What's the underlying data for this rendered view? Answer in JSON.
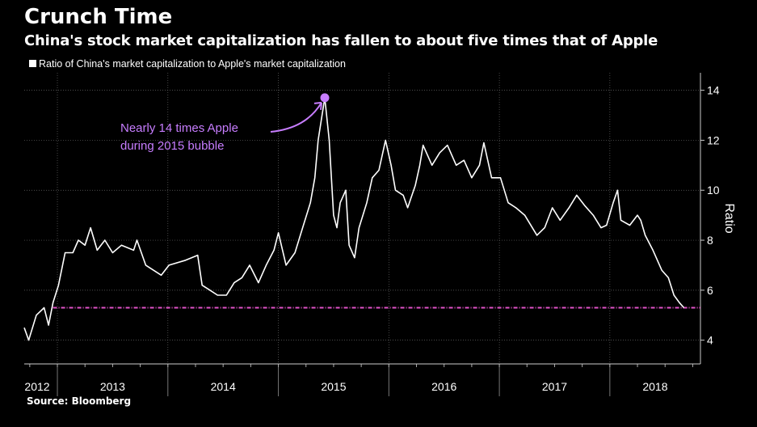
{
  "header": {
    "title": "Crunch Time",
    "subtitle": "China's stock market capitalization has fallen to about five times that of Apple"
  },
  "source": "Source: Bloomberg",
  "chart_data": {
    "type": "line",
    "title": "Crunch Time",
    "subtitle": "China's stock market capitalization has fallen to about five times that of Apple",
    "ylabel": "Ratio",
    "xlabel": "",
    "xlim": [
      2012.7,
      2018.82
    ],
    "ylim": [
      3.05,
      14.7
    ],
    "yticks": [
      4,
      6,
      8,
      10,
      12,
      14
    ],
    "xtick_labels": [
      "2012",
      "2013",
      "2014",
      "2015",
      "2016",
      "2017",
      "2018"
    ],
    "grid": true,
    "legend": {
      "position": "top-left",
      "entries": [
        "Ratio of China's market capitalization to Apple's market capitalization"
      ]
    },
    "colors": {
      "line": "#ffffff",
      "reference": "#e052c8",
      "annotation": "#c77dff"
    },
    "reference_line": {
      "y": 5.3,
      "style": "dash-dot"
    },
    "annotation": {
      "lines": [
        "Nearly 14 times Apple",
        "during 2015 bubble"
      ],
      "x": 2015.42,
      "y": 13.7
    },
    "series": [
      {
        "name": "Ratio of China's market capitalization to Apple's market capitalization",
        "x": [
          2012.7,
          2012.74,
          2012.81,
          2012.88,
          2012.92,
          2012.96,
          2013.01,
          2013.07,
          2013.14,
          2013.19,
          2013.25,
          2013.3,
          2013.36,
          2013.43,
          2013.5,
          2013.58,
          2013.69,
          2013.72,
          2013.8,
          2013.94,
          2014.01,
          2014.16,
          2014.27,
          2014.31,
          2014.38,
          2014.45,
          2014.53,
          2014.6,
          2014.67,
          2014.74,
          2014.82,
          2014.89,
          2014.96,
          2015.0,
          2015.07,
          2015.15,
          2015.22,
          2015.29,
          2015.33,
          2015.36,
          2015.42,
          2015.46,
          2015.5,
          2015.53,
          2015.56,
          2015.61,
          2015.64,
          2015.69,
          2015.73,
          2015.8,
          2015.85,
          2015.91,
          2015.97,
          2016.02,
          2016.06,
          2016.13,
          2016.17,
          2016.24,
          2016.28,
          2016.31,
          2016.39,
          2016.46,
          2016.53,
          2016.61,
          2016.68,
          2016.75,
          2016.82,
          2016.86,
          2016.93,
          2017.01,
          2017.08,
          2017.15,
          2017.23,
          2017.34,
          2017.41,
          2017.48,
          2017.55,
          2017.63,
          2017.7,
          2017.77,
          2017.85,
          2017.92,
          2017.97,
          2018.03,
          2018.07,
          2018.1,
          2018.18,
          2018.25,
          2018.28,
          2018.32,
          2018.39,
          2018.47,
          2018.53,
          2018.58,
          2018.63,
          2018.67
        ],
        "y": [
          4.5,
          4.0,
          5.0,
          5.3,
          4.6,
          5.5,
          6.2,
          7.5,
          7.5,
          8.0,
          7.8,
          8.5,
          7.6,
          8.0,
          7.5,
          7.8,
          7.6,
          8.0,
          7.0,
          6.6,
          7.0,
          7.2,
          7.4,
          6.2,
          6.0,
          5.8,
          5.8,
          6.3,
          6.5,
          7.0,
          6.3,
          7.0,
          7.6,
          8.3,
          7.0,
          7.5,
          8.5,
          9.5,
          10.5,
          12.0,
          13.7,
          12.0,
          9.0,
          8.5,
          9.5,
          10.0,
          7.8,
          7.3,
          8.5,
          9.5,
          10.5,
          10.8,
          12.0,
          11.0,
          10.0,
          9.8,
          9.3,
          10.2,
          11.0,
          11.8,
          11.0,
          11.5,
          11.8,
          11.0,
          11.2,
          10.5,
          11.0,
          11.9,
          10.5,
          10.5,
          9.5,
          9.3,
          9.0,
          8.2,
          8.5,
          9.3,
          8.8,
          9.3,
          9.8,
          9.4,
          9.0,
          8.5,
          8.6,
          9.5,
          10.0,
          8.8,
          8.6,
          9.0,
          8.8,
          8.2,
          7.6,
          6.8,
          6.5,
          5.8,
          5.5,
          5.3
        ]
      }
    ]
  }
}
